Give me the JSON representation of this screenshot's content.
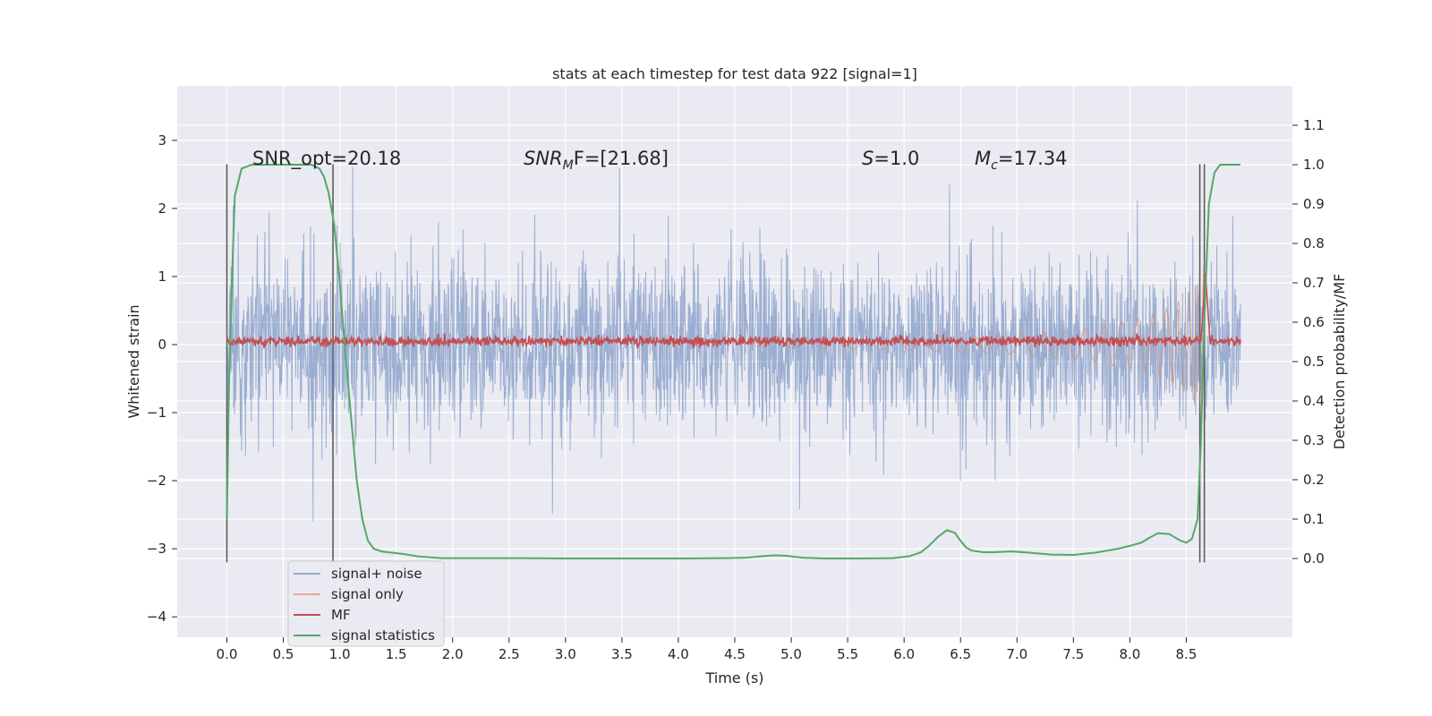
{
  "chart_data": {
    "type": "line",
    "title": "stats at each timestep for test data 922 [signal=1]",
    "xlabel": "Time (s)",
    "ylabel": "Whitened strain",
    "y2label": "Detection probability/MF",
    "xlim": [
      -0.44,
      9.44
    ],
    "ylim": [
      -4.3,
      3.8
    ],
    "y2lim": [
      -0.2,
      1.2
    ],
    "x_ticks": [
      "0.0",
      "0.5",
      "1.0",
      "1.5",
      "2.0",
      "2.5",
      "3.0",
      "3.5",
      "4.0",
      "4.5",
      "5.0",
      "5.5",
      "6.0",
      "6.5",
      "7.0",
      "7.5",
      "8.0",
      "8.5"
    ],
    "y_ticks": [
      "3",
      "2",
      "1",
      "0",
      "−1",
      "−2",
      "−3",
      "−4"
    ],
    "y2_ticks": [
      "1.1",
      "1.0",
      "0.9",
      "0.8",
      "0.7",
      "0.6",
      "0.5",
      "0.4",
      "0.3",
      "0.2",
      "0.1",
      "0.0"
    ],
    "grid": true,
    "legend_position": "lower-left",
    "annotations": {
      "snr_opt": "SNR_opt=20.18",
      "snr_mf_prefix": "SNR",
      "snr_mf_sub": "M",
      "snr_mf_suffix": "F=[21.68]",
      "s_var": "S",
      "s_val": "=1.0",
      "mc_var": "M",
      "mc_sub": "c",
      "mc_val": "=17.34"
    },
    "vertical_markers_s": [
      0.0,
      0.94,
      8.62,
      8.66
    ],
    "series": [
      {
        "name": "signal+ noise",
        "color": "#4C72B0",
        "axis": "left",
        "description_range": [
          -2.0,
          2.0
        ],
        "x_range": [
          0.0,
          8.98
        ]
      },
      {
        "name": "signal only",
        "color": "#DD8452",
        "axis": "left",
        "x_range": [
          4.5,
          8.67
        ],
        "envelope": {
          "x": [
            4.5,
            6.0,
            7.0,
            7.5,
            8.0,
            8.3,
            8.5,
            8.6,
            8.66
          ],
          "amp": [
            0.03,
            0.08,
            0.15,
            0.22,
            0.35,
            0.5,
            0.7,
            0.9,
            1.2
          ]
        }
      },
      {
        "name": "MF",
        "color": "#C44E52",
        "axis": "left",
        "baseline": 0.05,
        "peak": {
          "x": 8.67,
          "y": 1.0
        }
      },
      {
        "name": "signal statistics",
        "color": "#55A868",
        "axis": "right",
        "x": [
          0.0,
          0.02,
          0.05,
          0.07,
          0.13,
          0.22,
          0.3,
          0.4,
          0.5,
          0.6,
          0.7,
          0.75,
          0.82,
          0.86,
          0.9,
          0.95,
          1.0,
          1.05,
          1.1,
          1.15,
          1.2,
          1.25,
          1.3,
          1.37,
          1.45,
          1.55,
          1.7,
          1.9,
          2.2,
          2.6,
          3.0,
          3.5,
          4.0,
          4.4,
          4.6,
          4.75,
          4.85,
          4.95,
          5.1,
          5.3,
          5.6,
          5.9,
          6.05,
          6.15,
          6.22,
          6.3,
          6.38,
          6.45,
          6.5,
          6.55,
          6.6,
          6.7,
          6.8,
          6.95,
          7.1,
          7.3,
          7.5,
          7.7,
          7.9,
          8.0,
          8.1,
          8.17,
          8.25,
          8.35,
          8.45,
          8.5,
          8.55,
          8.6,
          8.63,
          8.66,
          8.7,
          8.75,
          8.8,
          8.9,
          8.98
        ],
        "y": [
          0.1,
          0.46,
          0.75,
          0.92,
          0.99,
          1.0,
          1.0,
          1.0,
          1.0,
          1.0,
          1.0,
          1.0,
          0.99,
          0.97,
          0.93,
          0.85,
          0.7,
          0.52,
          0.36,
          0.2,
          0.1,
          0.045,
          0.025,
          0.018,
          0.015,
          0.012,
          0.005,
          0.001,
          0.001,
          0.001,
          0.0,
          0.0,
          0.0,
          0.001,
          0.002,
          0.006,
          0.008,
          0.007,
          0.002,
          0.0,
          0.0,
          0.001,
          0.006,
          0.016,
          0.032,
          0.055,
          0.072,
          0.065,
          0.045,
          0.028,
          0.02,
          0.016,
          0.016,
          0.018,
          0.015,
          0.01,
          0.009,
          0.015,
          0.025,
          0.032,
          0.04,
          0.052,
          0.064,
          0.062,
          0.045,
          0.04,
          0.05,
          0.1,
          0.3,
          0.6,
          0.9,
          0.98,
          1.0,
          1.0,
          1.0
        ]
      }
    ]
  }
}
